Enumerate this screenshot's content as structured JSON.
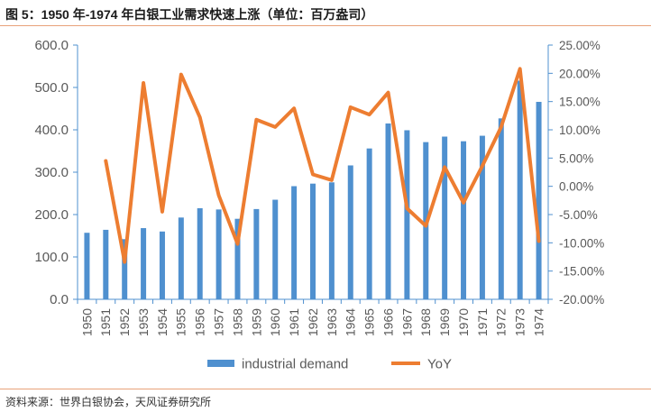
{
  "header": {
    "title": "图 5：1950 年-1974 年白银工业需求快速上涨（单位：百万盎司）"
  },
  "footer": {
    "source": "资料来源：世界白银协会，天风证券研究所"
  },
  "chart_data": {
    "type": "bar",
    "title": "",
    "categories": [
      "1950",
      "1951",
      "1952",
      "1953",
      "1954",
      "1955",
      "1956",
      "1957",
      "1958",
      "1959",
      "1960",
      "1961",
      "1962",
      "1963",
      "1964",
      "1965",
      "1966",
      "1967",
      "1968",
      "1969",
      "1970",
      "1971",
      "1972",
      "1973",
      "1974"
    ],
    "series": [
      {
        "name": "industrial demand",
        "type": "bar",
        "axis": "left",
        "color": "#4f90cf",
        "values": [
          157,
          164,
          142,
          168,
          160,
          193,
          215,
          212,
          190,
          213,
          235,
          267,
          273,
          276,
          316,
          356,
          415,
          399,
          371,
          384,
          373,
          386,
          427,
          516,
          466
        ]
      },
      {
        "name": "YoY",
        "type": "line",
        "axis": "right",
        "color": "#ed7d31",
        "values": [
          null,
          4.5,
          -13.4,
          18.3,
          -4.5,
          19.8,
          12.2,
          -1.6,
          -10.2,
          11.8,
          10.5,
          13.8,
          2.1,
          1.1,
          14.0,
          12.7,
          16.6,
          -3.9,
          -7.0,
          3.4,
          -2.9,
          3.6,
          10.5,
          20.8,
          -9.7
        ]
      }
    ],
    "y_left": {
      "min": 0,
      "max": 600,
      "step": 100,
      "ticks": [
        "0.0",
        "100.0",
        "200.0",
        "300.0",
        "400.0",
        "500.0",
        "600.0"
      ]
    },
    "y_right": {
      "min": -20,
      "max": 25,
      "step": 5,
      "ticks": [
        "-20.00%",
        "-15.00%",
        "-10.00%",
        "-5.00%",
        "0.00%",
        "5.00%",
        "10.00%",
        "15.00%",
        "20.00%",
        "25.00%"
      ]
    },
    "grid": false,
    "legend_position": "bottom",
    "x_tick_rotation": "vertical"
  }
}
